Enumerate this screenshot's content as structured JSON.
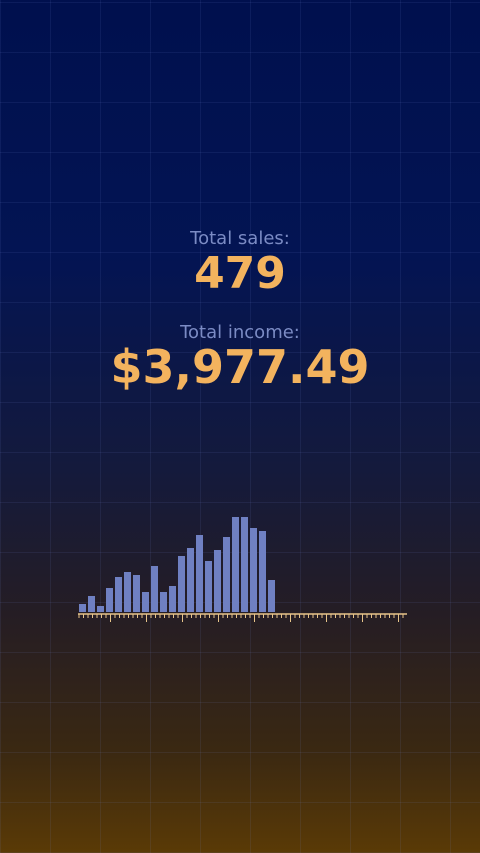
{
  "stats": [
    {
      "label": "Total sales:",
      "value": "479"
    },
    {
      "label": "Total income:",
      "value": "$3,977.49"
    }
  ],
  "chart_data": {
    "type": "bar",
    "categories": [
      null,
      null,
      null,
      null,
      null,
      null,
      null,
      null,
      null,
      null,
      null,
      null,
      null,
      null,
      null,
      null,
      null,
      null,
      null,
      null,
      null,
      null
    ],
    "values": [
      8,
      16,
      6,
      24,
      35,
      40,
      37,
      20,
      46,
      20,
      26,
      56,
      64,
      77,
      51,
      62,
      75,
      95,
      95,
      84,
      81,
      32
    ],
    "color": "#6f80c2",
    "ylim": [
      0,
      100
    ]
  }
}
